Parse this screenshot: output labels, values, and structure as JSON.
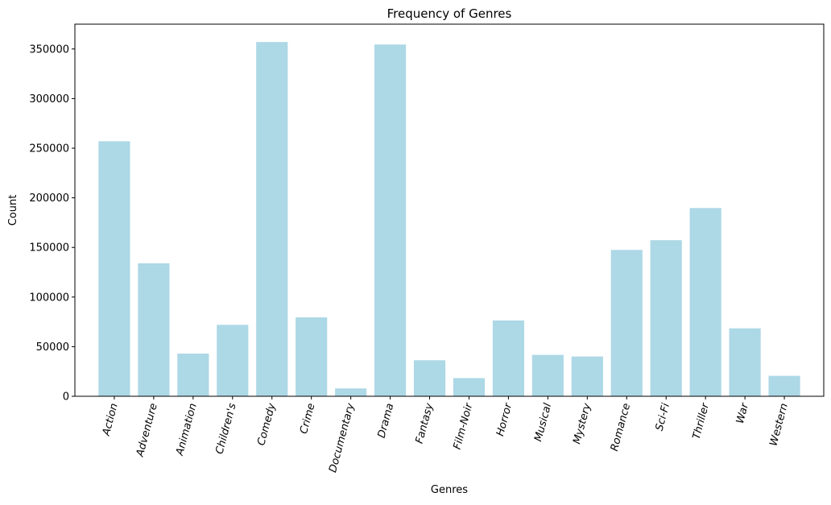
{
  "chart_data": {
    "type": "bar",
    "title": "Frequency of Genres",
    "xlabel": "Genres",
    "ylabel": "Count",
    "ylim": [
      0,
      375000
    ],
    "yticks": [
      0,
      50000,
      100000,
      150000,
      200000,
      250000,
      300000,
      350000
    ],
    "ytick_labels": [
      "0",
      "50000",
      "100000",
      "150000",
      "200000",
      "250000",
      "300000",
      "350000"
    ],
    "bar_color": "#add8e6",
    "grid": false,
    "categories": [
      "Action",
      "Adventure",
      "Animation",
      "Children's",
      "Comedy",
      "Crime",
      "Documentary",
      "Drama",
      "Fantasy",
      "Film-Noir",
      "Horror",
      "Musical",
      "Mystery",
      "Romance",
      "Sci-Fi",
      "Thriller",
      "War",
      "Western"
    ],
    "values": [
      257000,
      134000,
      43000,
      72000,
      357000,
      79500,
      7900,
      354500,
      36300,
      18300,
      76400,
      41700,
      40100,
      147500,
      157300,
      189700,
      68500,
      20600
    ]
  }
}
